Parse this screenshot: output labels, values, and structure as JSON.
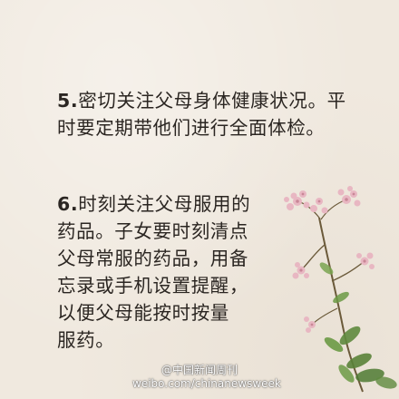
{
  "tips": [
    {
      "number": "5.",
      "lines": [
        "密切关注父母身体健康状况。平",
        "时要定期带他们进行全面体检。"
      ]
    },
    {
      "number": "6.",
      "lines": [
        "时刻关注父母服用的",
        "药品。子女要时刻清点",
        "父母常服的药品，用备",
        "忘录或手机设置提醒，",
        "以便父母能按时按量",
        "服药。"
      ]
    }
  ],
  "watermark": {
    "line1": "@中国新闻周刊",
    "line2": "weibo.com/chinanewsweek"
  },
  "colors": {
    "background": "#f0e9df",
    "text": "#2b2622",
    "blossom": "#e8b7c2",
    "leaf": "#5f8a3e",
    "stem": "#6b5a3a"
  },
  "illustration": "pink-flower-sprig"
}
